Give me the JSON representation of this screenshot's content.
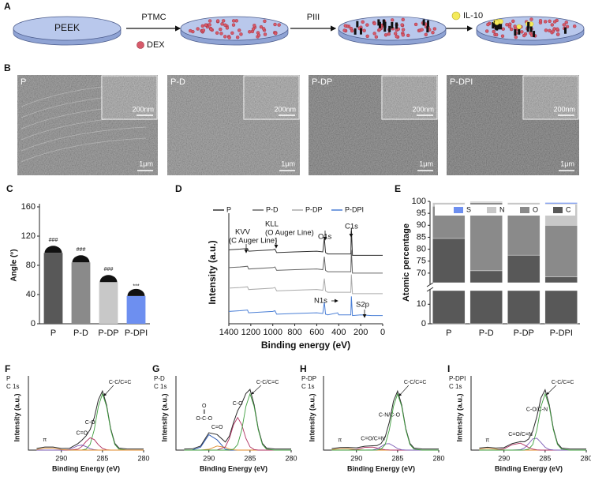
{
  "scheme": {
    "label": "A",
    "substrate": "PEEK",
    "step1": "PTMC",
    "dex": "DEX",
    "step2": "PIII",
    "il10": "IL-10"
  },
  "sem": {
    "label": "B",
    "images": [
      {
        "title": "P",
        "inset_scale": "200nm",
        "scale": "1μm"
      },
      {
        "title": "P-D",
        "inset_scale": "200nm",
        "scale": "1μm"
      },
      {
        "title": "P-DP",
        "inset_scale": "200nm",
        "scale": "1μm"
      },
      {
        "title": "P-DPI",
        "inset_scale": "200nm",
        "scale": "1μm"
      }
    ]
  },
  "chart_data": [
    {
      "label": "C",
      "type": "bar",
      "ylabel": "Angle (°)",
      "categories": [
        "P",
        "P-D",
        "P-DP",
        "P-DPI"
      ],
      "values": [
        97,
        84,
        57,
        38
      ],
      "colors": [
        "#585858",
        "#8a8a8a",
        "#c8c8c8",
        "#6d8ff0"
      ],
      "ylim": [
        0,
        160
      ],
      "yticks": [
        0,
        40,
        80,
        120,
        160
      ],
      "sig_top": [
        "###",
        "###",
        "###",
        null
      ],
      "sig_bottom": [
        null,
        null,
        "***",
        "***"
      ]
    },
    {
      "label": "D",
      "type": "line",
      "legend": "top",
      "ylabel": "Intensity (a.u.)",
      "xlabel": "Binding energy (eV)",
      "x": [
        1400,
        1300,
        1230,
        1220,
        1000,
        980,
        965,
        800,
        600,
        545,
        531,
        520,
        500,
        410,
        400,
        300,
        290,
        285,
        275,
        200,
        100,
        0
      ],
      "xlim": [
        1400,
        0
      ],
      "xticks": [
        1400,
        1200,
        1000,
        800,
        600,
        400,
        200,
        0
      ],
      "ylim": [
        30,
        105
      ],
      "series": [
        {
          "name": "P",
          "color": "#333333",
          "values": [
            84,
            84.5,
            85,
            83,
            84,
            84.5,
            82,
            82.5,
            83,
            82.5,
            93,
            82,
            81,
            81,
            81,
            81,
            81,
            100,
            80,
            80,
            80,
            80
          ]
        },
        {
          "name": "P-D",
          "color": "#666666",
          "values": [
            71,
            71.5,
            72,
            70,
            71,
            71.5,
            69,
            69.5,
            70,
            69.5,
            79,
            69,
            68,
            68,
            68,
            68,
            68,
            84,
            67,
            67,
            67,
            67
          ]
        },
        {
          "name": "P-DP",
          "color": "#aaaaaa",
          "values": [
            56,
            56.5,
            57,
            55,
            56,
            56.5,
            54,
            54.5,
            55,
            54.5,
            63,
            54,
            53,
            53,
            53,
            53,
            53,
            66,
            52,
            52,
            52,
            52
          ]
        },
        {
          "name": "P-DPI",
          "color": "#4a7fd6",
          "values": [
            39,
            39.5,
            40,
            38,
            39,
            39.5,
            37,
            37.5,
            38,
            37.5,
            46,
            37,
            36.5,
            38,
            36.5,
            36.5,
            36.5,
            50,
            36,
            36.5,
            36,
            36
          ]
        }
      ],
      "annotations": [
        "KVV",
        "(C Auger Line)",
        "KLL",
        "(O Auger Line)",
        "O1s",
        "C1s",
        "N1s",
        "S2p"
      ]
    },
    {
      "label": "E",
      "type": "stacked_bar",
      "ylabel": "Atomic percentage",
      "categories": [
        "P",
        "P-D",
        "P-DP",
        "P-DPI"
      ],
      "ylim": [
        0,
        100
      ],
      "ybreak": [
        17,
        66
      ],
      "yticks": [
        0,
        10,
        70,
        75,
        80,
        85,
        90,
        95,
        100
      ],
      "series": [
        {
          "name": "S",
          "color": "#6d8ff0",
          "values": [
            0,
            0,
            0,
            0.5
          ]
        },
        {
          "name": "N",
          "color": "#c8c8c8",
          "values": [
            1.5,
            0.5,
            4,
            9
          ]
        },
        {
          "name": "O",
          "color": "#8a8a8a",
          "values": [
            13.5,
            28.5,
            18,
            21.5
          ]
        },
        {
          "name": "C",
          "color": "#585858",
          "values": [
            84.5,
            71,
            77.5,
            68.5
          ]
        }
      ]
    },
    {
      "label": "F",
      "type": "line",
      "sample": "P",
      "core": "C 1s",
      "ylabel": "Intensity (a.u.)",
      "xlabel": "Binding Energy (eV)",
      "x": [
        293,
        292,
        291,
        290,
        289,
        288,
        287.5,
        287,
        286.5,
        286,
        285.5,
        285,
        284.5,
        284,
        283.5,
        283,
        282,
        281,
        280
      ],
      "xlim": [
        294,
        280
      ],
      "xticks": [
        290,
        285,
        280
      ],
      "ylim": [
        0,
        115
      ],
      "series": [
        {
          "color": "#2a2a2a",
          "values": [
            3,
            5.4,
            5.4,
            3,
            3.3,
            11.3,
            17.5,
            25.1,
            36.4,
            57.4,
            89.1,
            105,
            80.1,
            38,
            12,
            3.7,
            2,
            2,
            2
          ]
        },
        {
          "name": "C-C/C=C",
          "color": "#3f9f3f",
          "values": [
            0,
            0,
            0,
            0,
            0,
            0,
            0.2,
            1.7,
            10,
            36,
            77.5,
            100,
            77.5,
            36,
            10,
            1.7,
            0,
            0,
            0
          ]
        },
        {
          "name": "C-O",
          "color": "#b03060",
          "values": [
            0,
            0,
            0,
            0,
            0,
            1.6,
            6.4,
            15.2,
            21.8,
            18.7,
            9.6,
            3,
            0.6,
            0,
            0,
            0,
            0,
            0,
            0
          ]
        },
        {
          "name": "C=O",
          "color": "#7a5bb5",
          "values": [
            0,
            0,
            0,
            0,
            1.2,
            7.7,
            8.9,
            6.2,
            2.6,
            0.7,
            0,
            0,
            0,
            0,
            0,
            0,
            0,
            0,
            0
          ]
        },
        {
          "name": "π",
          "color": "#e08a2a",
          "values": [
            1,
            3.4,
            3.4,
            1,
            0.1,
            0,
            0,
            0,
            0,
            0,
            0,
            0,
            0,
            0,
            0,
            0,
            0,
            0,
            0
          ]
        }
      ]
    },
    {
      "label": "G",
      "type": "line",
      "sample": "P-D",
      "core": "C 1s",
      "ylabel": "Intensity (a.u.)",
      "xlabel": "Binding Energy (eV)",
      "x": [
        293,
        292,
        291,
        290,
        289,
        288,
        287.5,
        287,
        286.5,
        286,
        285.5,
        285,
        284.5,
        284,
        283.5,
        283,
        282,
        281,
        280
      ],
      "xlim": [
        294,
        280
      ],
      "xticks": [
        290,
        285,
        280
      ],
      "ylim": [
        0,
        115
      ],
      "series": [
        {
          "color": "#2a2a2a",
          "values": [
            2,
            2.2,
            7.3,
            30.8,
            27.6,
            14.3,
            25.1,
            49.1,
            70,
            83,
            100.4,
            107.8,
            80.5,
            38,
            12,
            3.7,
            2,
            2,
            2
          ]
        },
        {
          "label_lines": [
            "O",
            "‖",
            "O-C-O"
          ],
          "color": "#2050b0",
          "values": [
            0,
            0.2,
            5.3,
            27.4,
            18.2,
            1.6,
            0.2,
            0,
            0,
            0,
            0,
            0,
            0,
            0,
            0,
            0,
            0,
            0,
            0
          ]
        },
        {
          "name": "C=O",
          "color": "#e08a2a",
          "values": [
            0,
            0,
            0,
            1.4,
            7.3,
            4.9,
            1.8,
            0.4,
            0,
            0,
            0,
            0,
            0,
            0,
            0,
            0,
            0,
            0,
            0
          ]
        },
        {
          "name": "C-O",
          "color": "#b03060",
          "values": [
            0,
            0,
            0,
            0,
            0.1,
            5.8,
            20.9,
            45,
            58,
            45,
            20.9,
            5.8,
            1,
            0,
            0,
            0,
            0,
            0,
            0
          ]
        },
        {
          "name": "C-C/C=C",
          "color": "#3f9f3f",
          "values": [
            0,
            0,
            0,
            0,
            0,
            0,
            0.2,
            1.7,
            10,
            36,
            77.5,
            100,
            77.5,
            36,
            10,
            1.7,
            0,
            0,
            0
          ]
        }
      ]
    },
    {
      "label": "H",
      "type": "line",
      "sample": "P-DP",
      "core": "C 1s",
      "ylabel": "Intensity (a.u.)",
      "xlabel": "Binding Energy (eV)",
      "x": [
        293,
        292,
        291,
        290,
        289,
        288,
        287.5,
        287,
        286.5,
        286,
        285.5,
        285,
        284.5,
        284,
        283.5,
        283,
        282,
        281,
        280
      ],
      "xlim": [
        294,
        280
      ],
      "xticks": [
        290,
        285,
        280
      ],
      "ylim": [
        0,
        115
      ],
      "series": [
        {
          "color": "#2a2a2a",
          "values": [
            2.8,
            4.6,
            4.7,
            4,
            6.9,
            7.8,
            8,
            11.7,
            23.5,
            49.7,
            86.8,
            104.8,
            80.1,
            38.1,
            12,
            3.7,
            2,
            2,
            2
          ]
        },
        {
          "name": "π",
          "color": "#e08a2a",
          "values": [
            0.8,
            2.6,
            2.6,
            0.8,
            0.1,
            0,
            0,
            0,
            0,
            0,
            0,
            0,
            0,
            0,
            0,
            0,
            0,
            0,
            0
          ]
        },
        {
          "name": "C=O/C=N",
          "color": "#b03060",
          "values": [
            0,
            0,
            0.1,
            1.2,
            4.8,
            5.4,
            3.7,
            1.8,
            0.6,
            0.2,
            0,
            0,
            0,
            0,
            0,
            0,
            0,
            0,
            0
          ]
        },
        {
          "name": "C-N/C-O",
          "color": "#7a5bb5",
          "values": [
            0,
            0,
            0,
            0,
            0,
            0.4,
            2.1,
            6.2,
            10.9,
            11.5,
            7.3,
            2.8,
            0.6,
            0.1,
            0,
            0,
            0,
            0,
            0
          ]
        },
        {
          "name": "C-C/C=C",
          "color": "#3f9f3f",
          "values": [
            0,
            0,
            0,
            0,
            0,
            0,
            0.2,
            1.7,
            10,
            36,
            77.5,
            100,
            77.5,
            36,
            10,
            1.7,
            0,
            0,
            0
          ]
        }
      ]
    },
    {
      "label": "I",
      "type": "line",
      "sample": "P-DPI",
      "core": "C 1s",
      "ylabel": "Intensity (a.u.)",
      "xlabel": "Binding Energy (eV)",
      "x": [
        293,
        292,
        291,
        290,
        289,
        288,
        287.5,
        287,
        286.5,
        286,
        285.5,
        285,
        284.5,
        284,
        283.5,
        283,
        282,
        281,
        280
      ],
      "xlim": [
        294,
        280
      ],
      "xticks": [
        290,
        285,
        280
      ],
      "ylim": [
        0,
        115
      ],
      "series": [
        {
          "color": "#2a2a2a",
          "values": [
            3.6,
            5,
            3.7,
            4.4,
            11.6,
            15,
            14.8,
            19.7,
            33.8,
            59.6,
            92.9,
            107.1,
            80.6,
            38.2,
            12,
            3.7,
            2,
            2,
            2
          ]
        },
        {
          "name": "π",
          "color": "#e08a2a",
          "values": [
            1.6,
            3,
            1.6,
            0.2,
            0,
            0,
            0,
            0,
            0,
            0,
            0,
            0,
            0,
            0,
            0,
            0,
            0,
            0,
            0
          ]
        },
        {
          "name": "C=O/C=N",
          "color": "#b03060",
          "values": [
            0,
            0,
            0.1,
            2.2,
            9.6,
            12.3,
            8.7,
            4.6,
            1.8,
            0.5,
            0,
            0,
            0,
            0,
            0,
            0,
            0,
            0,
            0
          ]
        },
        {
          "name": "C-O/C-N",
          "color": "#7a5bb5",
          "values": [
            0,
            0,
            0,
            0,
            0,
            0.7,
            3.9,
            11.4,
            20,
            21.1,
            13.4,
            5.1,
            1.1,
            0.2,
            0,
            0,
            0,
            0,
            0
          ]
        },
        {
          "name": "C-C/C=C",
          "color": "#3f9f3f",
          "values": [
            0,
            0,
            0,
            0,
            0,
            0,
            0.2,
            1.7,
            10,
            36,
            77.5,
            100,
            77.5,
            36,
            10,
            1.7,
            0,
            0,
            0
          ]
        }
      ]
    }
  ]
}
